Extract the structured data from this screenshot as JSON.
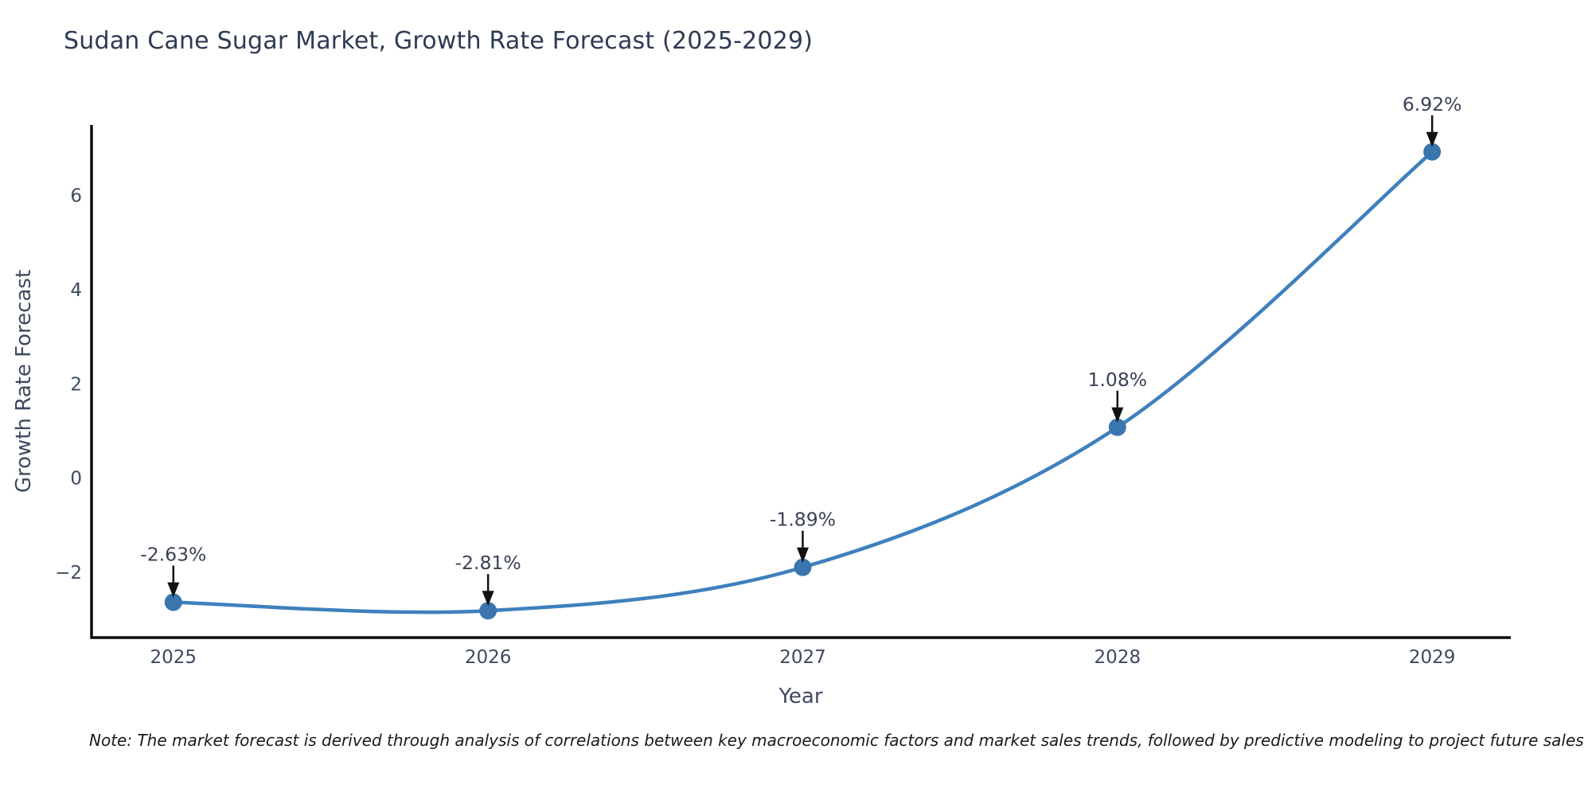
{
  "title": "Sudan Cane Sugar Market, Growth Rate Forecast (2025-2029)",
  "note": "Note: The market forecast is derived through analysis of correlations between key macroeconomic factors and market sales trends, followed by predictive modeling to project future sales",
  "chart_data": {
    "type": "line",
    "title": "Sudan Cane Sugar Market, Growth Rate Forecast (2025-2029)",
    "xlabel": "Year",
    "ylabel": "Growth Rate Forecast",
    "x": [
      2025,
      2026,
      2027,
      2028,
      2029
    ],
    "values": [
      -2.63,
      -2.81,
      -1.89,
      1.08,
      6.92
    ],
    "point_labels": [
      "-2.63%",
      "-2.81%",
      "-1.89%",
      "1.08%",
      "6.92%"
    ],
    "xticks": [
      2025,
      2026,
      2027,
      2028,
      2029
    ],
    "xtick_labels": [
      "2025",
      "2026",
      "2027",
      "2028",
      "2029"
    ],
    "yticks": [
      -2,
      0,
      2,
      4,
      6
    ],
    "ytick_labels": [
      "−2",
      "0",
      "2",
      "4",
      "6"
    ],
    "xlim": [
      2024.74,
      2029.25
    ],
    "ylim": [
      -3.38,
      7.49
    ],
    "grid": false,
    "legend": false,
    "smooth": true,
    "annotation_arrows": true
  },
  "colors": {
    "line": "#3f80bd",
    "marker": "#3a76ad",
    "axis_line": "#0d0d0d",
    "axis_text": "#3f4a5f",
    "annotation_text": "#3a4254",
    "arrow": "#111111",
    "title_text": "#2f3a54",
    "background": "#ffffff"
  }
}
